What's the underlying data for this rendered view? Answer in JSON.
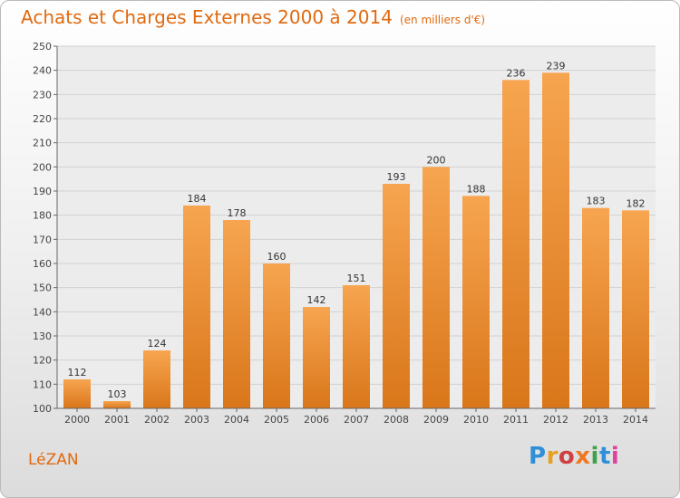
{
  "header": {
    "title": "Achats et Charges Externes 2000 à 2014",
    "subtitle": "(en milliers d'€)"
  },
  "footer": {
    "city": "LéZAN",
    "logo": "Proxiti",
    "logo_colors": [
      "#2f8fd8",
      "#e8a020",
      "#d04040",
      "#f07820",
      "#3da24a",
      "#2f8fd8",
      "#e040a0"
    ]
  },
  "chart_data": {
    "type": "bar",
    "title": "Achats et Charges Externes 2000 à 2014",
    "subtitle": "(en milliers d'€)",
    "categories": [
      "2000",
      "2001",
      "2002",
      "2003",
      "2004",
      "2005",
      "2006",
      "2007",
      "2008",
      "2009",
      "2010",
      "2011",
      "2012",
      "2013",
      "2014"
    ],
    "values": [
      112,
      103,
      124,
      184,
      178,
      160,
      142,
      151,
      193,
      200,
      188,
      236,
      239,
      183,
      182
    ],
    "ylim": [
      100,
      250
    ],
    "yticks": [
      100,
      110,
      120,
      130,
      140,
      150,
      160,
      170,
      180,
      190,
      200,
      210,
      220,
      230,
      240,
      250
    ],
    "grid": true,
    "bar_color_top": "#f7a550",
    "bar_color_bottom": "#d9761a",
    "xlabel": "",
    "ylabel": ""
  }
}
